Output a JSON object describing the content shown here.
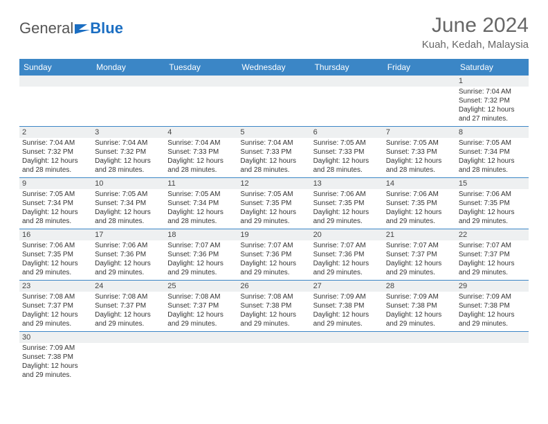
{
  "logo": {
    "general": "General",
    "blue": "Blue"
  },
  "title": "June 2024",
  "location": "Kuah, Kedah, Malaysia",
  "header_bg": "#3b86c6",
  "daynum_bg": "#eef0f1",
  "dayNames": [
    "Sunday",
    "Monday",
    "Tuesday",
    "Wednesday",
    "Thursday",
    "Friday",
    "Saturday"
  ],
  "weeks": [
    [
      null,
      null,
      null,
      null,
      null,
      null,
      {
        "n": "1",
        "sr": "Sunrise: 7:04 AM",
        "ss": "Sunset: 7:32 PM",
        "d1": "Daylight: 12 hours",
        "d2": "and 27 minutes."
      }
    ],
    [
      {
        "n": "2",
        "sr": "Sunrise: 7:04 AM",
        "ss": "Sunset: 7:32 PM",
        "d1": "Daylight: 12 hours",
        "d2": "and 28 minutes."
      },
      {
        "n": "3",
        "sr": "Sunrise: 7:04 AM",
        "ss": "Sunset: 7:32 PM",
        "d1": "Daylight: 12 hours",
        "d2": "and 28 minutes."
      },
      {
        "n": "4",
        "sr": "Sunrise: 7:04 AM",
        "ss": "Sunset: 7:33 PM",
        "d1": "Daylight: 12 hours",
        "d2": "and 28 minutes."
      },
      {
        "n": "5",
        "sr": "Sunrise: 7:04 AM",
        "ss": "Sunset: 7:33 PM",
        "d1": "Daylight: 12 hours",
        "d2": "and 28 minutes."
      },
      {
        "n": "6",
        "sr": "Sunrise: 7:05 AM",
        "ss": "Sunset: 7:33 PM",
        "d1": "Daylight: 12 hours",
        "d2": "and 28 minutes."
      },
      {
        "n": "7",
        "sr": "Sunrise: 7:05 AM",
        "ss": "Sunset: 7:33 PM",
        "d1": "Daylight: 12 hours",
        "d2": "and 28 minutes."
      },
      {
        "n": "8",
        "sr": "Sunrise: 7:05 AM",
        "ss": "Sunset: 7:34 PM",
        "d1": "Daylight: 12 hours",
        "d2": "and 28 minutes."
      }
    ],
    [
      {
        "n": "9",
        "sr": "Sunrise: 7:05 AM",
        "ss": "Sunset: 7:34 PM",
        "d1": "Daylight: 12 hours",
        "d2": "and 28 minutes."
      },
      {
        "n": "10",
        "sr": "Sunrise: 7:05 AM",
        "ss": "Sunset: 7:34 PM",
        "d1": "Daylight: 12 hours",
        "d2": "and 28 minutes."
      },
      {
        "n": "11",
        "sr": "Sunrise: 7:05 AM",
        "ss": "Sunset: 7:34 PM",
        "d1": "Daylight: 12 hours",
        "d2": "and 28 minutes."
      },
      {
        "n": "12",
        "sr": "Sunrise: 7:05 AM",
        "ss": "Sunset: 7:35 PM",
        "d1": "Daylight: 12 hours",
        "d2": "and 29 minutes."
      },
      {
        "n": "13",
        "sr": "Sunrise: 7:06 AM",
        "ss": "Sunset: 7:35 PM",
        "d1": "Daylight: 12 hours",
        "d2": "and 29 minutes."
      },
      {
        "n": "14",
        "sr": "Sunrise: 7:06 AM",
        "ss": "Sunset: 7:35 PM",
        "d1": "Daylight: 12 hours",
        "d2": "and 29 minutes."
      },
      {
        "n": "15",
        "sr": "Sunrise: 7:06 AM",
        "ss": "Sunset: 7:35 PM",
        "d1": "Daylight: 12 hours",
        "d2": "and 29 minutes."
      }
    ],
    [
      {
        "n": "16",
        "sr": "Sunrise: 7:06 AM",
        "ss": "Sunset: 7:35 PM",
        "d1": "Daylight: 12 hours",
        "d2": "and 29 minutes."
      },
      {
        "n": "17",
        "sr": "Sunrise: 7:06 AM",
        "ss": "Sunset: 7:36 PM",
        "d1": "Daylight: 12 hours",
        "d2": "and 29 minutes."
      },
      {
        "n": "18",
        "sr": "Sunrise: 7:07 AM",
        "ss": "Sunset: 7:36 PM",
        "d1": "Daylight: 12 hours",
        "d2": "and 29 minutes."
      },
      {
        "n": "19",
        "sr": "Sunrise: 7:07 AM",
        "ss": "Sunset: 7:36 PM",
        "d1": "Daylight: 12 hours",
        "d2": "and 29 minutes."
      },
      {
        "n": "20",
        "sr": "Sunrise: 7:07 AM",
        "ss": "Sunset: 7:36 PM",
        "d1": "Daylight: 12 hours",
        "d2": "and 29 minutes."
      },
      {
        "n": "21",
        "sr": "Sunrise: 7:07 AM",
        "ss": "Sunset: 7:37 PM",
        "d1": "Daylight: 12 hours",
        "d2": "and 29 minutes."
      },
      {
        "n": "22",
        "sr": "Sunrise: 7:07 AM",
        "ss": "Sunset: 7:37 PM",
        "d1": "Daylight: 12 hours",
        "d2": "and 29 minutes."
      }
    ],
    [
      {
        "n": "23",
        "sr": "Sunrise: 7:08 AM",
        "ss": "Sunset: 7:37 PM",
        "d1": "Daylight: 12 hours",
        "d2": "and 29 minutes."
      },
      {
        "n": "24",
        "sr": "Sunrise: 7:08 AM",
        "ss": "Sunset: 7:37 PM",
        "d1": "Daylight: 12 hours",
        "d2": "and 29 minutes."
      },
      {
        "n": "25",
        "sr": "Sunrise: 7:08 AM",
        "ss": "Sunset: 7:37 PM",
        "d1": "Daylight: 12 hours",
        "d2": "and 29 minutes."
      },
      {
        "n": "26",
        "sr": "Sunrise: 7:08 AM",
        "ss": "Sunset: 7:38 PM",
        "d1": "Daylight: 12 hours",
        "d2": "and 29 minutes."
      },
      {
        "n": "27",
        "sr": "Sunrise: 7:09 AM",
        "ss": "Sunset: 7:38 PM",
        "d1": "Daylight: 12 hours",
        "d2": "and 29 minutes."
      },
      {
        "n": "28",
        "sr": "Sunrise: 7:09 AM",
        "ss": "Sunset: 7:38 PM",
        "d1": "Daylight: 12 hours",
        "d2": "and 29 minutes."
      },
      {
        "n": "29",
        "sr": "Sunrise: 7:09 AM",
        "ss": "Sunset: 7:38 PM",
        "d1": "Daylight: 12 hours",
        "d2": "and 29 minutes."
      }
    ],
    [
      {
        "n": "30",
        "sr": "Sunrise: 7:09 AM",
        "ss": "Sunset: 7:38 PM",
        "d1": "Daylight: 12 hours",
        "d2": "and 29 minutes."
      },
      null,
      null,
      null,
      null,
      null,
      null
    ]
  ]
}
